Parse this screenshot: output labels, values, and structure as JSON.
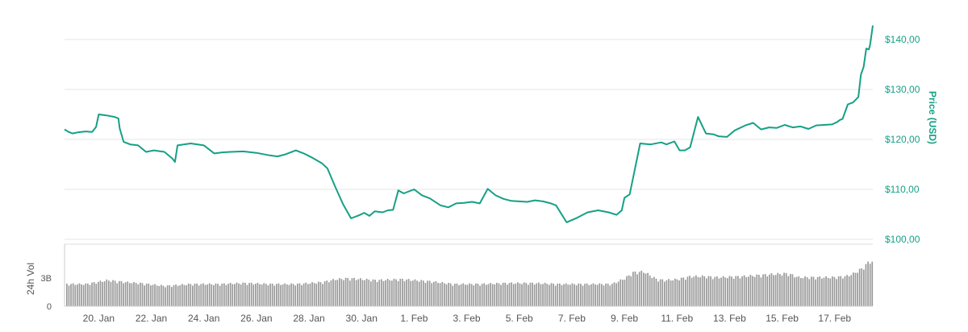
{
  "chart_data": {
    "type": "line",
    "xlabel": "",
    "ylabel": "Price (USD)",
    "ylim": [
      100,
      142
    ],
    "grid": true,
    "price_ticks": [
      "$140,00",
      "$130,00",
      "$120,00",
      "$110,00",
      "$100,00"
    ],
    "price_tick_values": [
      140,
      130,
      120,
      110,
      100
    ],
    "x_ticks": [
      "20. Jan",
      "22. Jan",
      "24. Jan",
      "26. Jan",
      "28. Jan",
      "30. Jan",
      "1. Feb",
      "3. Feb",
      "5. Feb",
      "7. Feb",
      "9. Feb",
      "11. Feb",
      "13. Feb",
      "15. Feb",
      "17. Feb"
    ],
    "x_tick_values": [
      2,
      4,
      6,
      8,
      10,
      12,
      14,
      16,
      18,
      20,
      22,
      24,
      26,
      28,
      30
    ],
    "x_range": [
      0.7,
      31.45
    ],
    "series": [
      {
        "name": "Price",
        "color": "#16a085",
        "x": [
          0.7,
          0.85,
          1.0,
          1.2,
          1.5,
          1.75,
          1.9,
          2.0,
          2.3,
          2.6,
          2.75,
          2.8,
          2.95,
          3.2,
          3.5,
          3.8,
          4.1,
          4.5,
          4.8,
          4.9,
          5.0,
          5.5,
          6.0,
          6.2,
          6.4,
          6.7,
          7.0,
          7.5,
          8.0,
          8.5,
          8.8,
          9.1,
          9.5,
          9.8,
          9.95,
          10.1,
          10.3,
          10.5,
          10.7,
          11.0,
          11.3,
          11.6,
          11.9,
          12.1,
          12.3,
          12.5,
          12.8,
          13.0,
          13.2,
          13.4,
          13.6,
          14.0,
          14.3,
          14.6,
          15.0,
          15.3,
          15.6,
          15.9,
          16.2,
          16.5,
          16.8,
          17.1,
          17.4,
          17.7,
          18.0,
          18.3,
          18.6,
          18.9,
          19.2,
          19.4,
          19.8,
          20.2,
          20.6,
          21.0,
          21.4,
          21.7,
          21.9,
          22.0,
          22.2,
          22.6,
          23.0,
          23.4,
          23.6,
          23.9,
          24.1,
          24.3,
          24.5,
          24.8,
          25.1,
          25.4,
          25.6,
          25.9,
          26.2,
          26.6,
          26.9,
          27.2,
          27.5,
          27.8,
          28.1,
          28.4,
          28.7,
          29.0,
          29.3,
          29.6,
          29.9,
          30.1,
          30.2,
          30.3,
          30.5,
          30.7,
          30.9,
          31.0,
          31.1,
          31.2,
          31.3,
          31.35,
          31.45
        ],
        "values": [
          122,
          121.5,
          121.2,
          121.4,
          121.6,
          121.5,
          122.5,
          125,
          124.8,
          124.5,
          124.2,
          122.2,
          119.5,
          119,
          118.8,
          117.5,
          117.8,
          117.5,
          116.2,
          115.5,
          118.8,
          119.2,
          118.8,
          118,
          117.2,
          117.4,
          117.5,
          117.6,
          117.3,
          116.8,
          116.6,
          117,
          117.8,
          117.2,
          116.8,
          116.4,
          115.8,
          115.2,
          114.2,
          110.5,
          107,
          104.2,
          104.8,
          105.3,
          104.7,
          105.6,
          105.4,
          105.8,
          105.9,
          109.8,
          109.2,
          110,
          108.8,
          108.2,
          106.8,
          106.4,
          107.2,
          107.3,
          107.5,
          107.2,
          110.1,
          108.8,
          108.1,
          107.7,
          107.6,
          107.5,
          107.8,
          107.6,
          107.2,
          106.8,
          103.4,
          104.3,
          105.4,
          105.8,
          105.4,
          104.9,
          105.8,
          108.3,
          109,
          119.2,
          119,
          119.4,
          119,
          119.6,
          117.8,
          117.8,
          118.4,
          124.5,
          121.2,
          121,
          120.6,
          120.5,
          121.8,
          122.8,
          123.3,
          122,
          122.4,
          122.3,
          122.9,
          122.4,
          122.6,
          122.1,
          122.8,
          122.9,
          123,
          123.5,
          123.9,
          124.1,
          127,
          127.4,
          128.5,
          133,
          134.5,
          138.2,
          138,
          139,
          142.8
        ]
      }
    ],
    "volume": {
      "label": "24h Vol",
      "ticks": [
        "3B",
        "0"
      ],
      "tick_values": [
        3,
        0
      ],
      "ylim": [
        0,
        5.5
      ],
      "unit": "B",
      "color": "#999999",
      "x": [
        0.7,
        1.5,
        2.3,
        3.0,
        3.5,
        4.5,
        5.5,
        6.5,
        7.5,
        8.5,
        9.5,
        10.5,
        11.0,
        11.5,
        12.5,
        13.5,
        14.5,
        15.5,
        16.5,
        17.5,
        18.5,
        19.5,
        20.5,
        21.0,
        21.5,
        22.0,
        22.3,
        22.7,
        23.2,
        23.5,
        24.0,
        24.5,
        25.0,
        25.5,
        26.5,
        27.5,
        28.2,
        28.6,
        29.3,
        29.9,
        30.4,
        30.7,
        31.0,
        31.2,
        31.3,
        31.45
      ],
      "values": [
        2.3,
        2.3,
        2.7,
        2.5,
        2.4,
        2.1,
        2.3,
        2.3,
        2.4,
        2.3,
        2.3,
        2.5,
        2.8,
        2.9,
        2.7,
        2.8,
        2.6,
        2.3,
        2.3,
        2.4,
        2.4,
        2.3,
        2.3,
        2.3,
        2.3,
        2.9,
        3.5,
        3.6,
        2.8,
        2.7,
        2.8,
        3.1,
        3.1,
        3.0,
        3.1,
        3.3,
        3.4,
        3.0,
        3.0,
        3.0,
        3.1,
        3.4,
        3.9,
        4.4,
        4.7,
        4.6
      ]
    }
  }
}
